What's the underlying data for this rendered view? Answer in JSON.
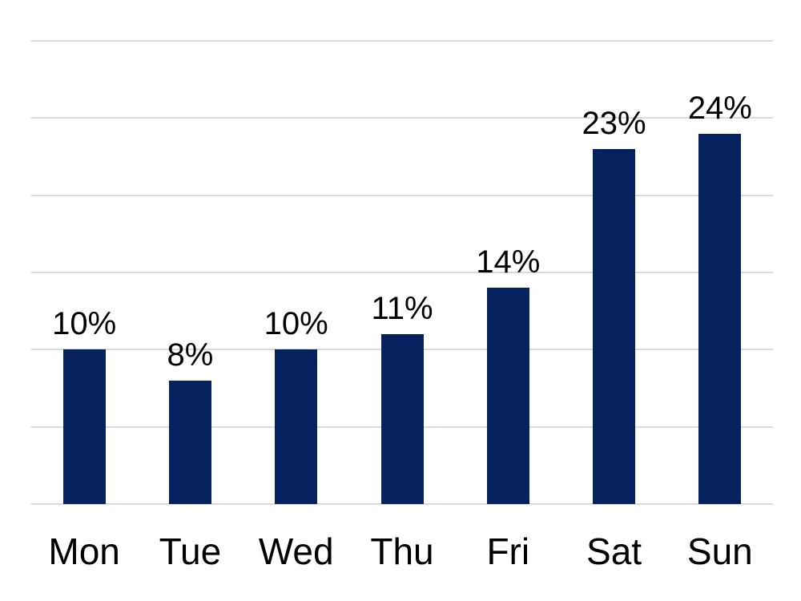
{
  "chart_data": {
    "type": "bar",
    "title": "",
    "xlabel": "",
    "ylabel": "",
    "categories": [
      "Mon",
      "Tue",
      "Wed",
      "Thu",
      "Fri",
      "Sat",
      "Sun"
    ],
    "values": [
      10,
      8,
      10,
      11,
      14,
      23,
      24
    ],
    "value_labels": [
      "10%",
      "8%",
      "10%",
      "11%",
      "14%",
      "23%",
      "24%"
    ],
    "unit": "%",
    "ylim": [
      0,
      30
    ],
    "gridline_step": 5,
    "grid": "horizontal-only",
    "y_tick_labels_visible": false,
    "legend": "none",
    "bar_color": "#05215e",
    "gridline_color": "#d9d9d9",
    "label_color": "#000000",
    "background": "#ffffff"
  }
}
